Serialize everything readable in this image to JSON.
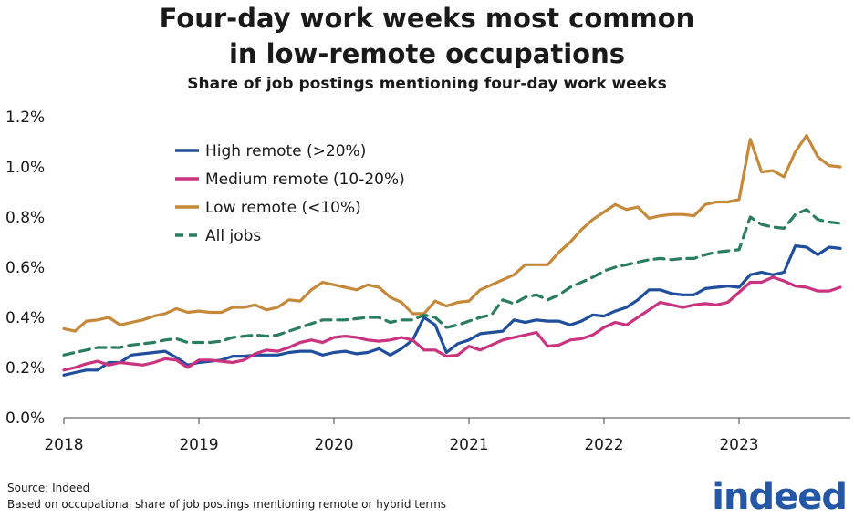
{
  "title_line1": "Four-day work weeks most common",
  "title_line2": "in low-remote occupations",
  "subtitle": "Share of job postings mentioning four-day work weeks",
  "source": "Source: Indeed",
  "note": "Based on occupational share of job postings mentioning remote or hybrid terms",
  "logo": "indeed",
  "chart_data": {
    "type": "line",
    "title": "Four-day work weeks most common in low-remote occupations",
    "subtitle": "Share of job postings mentioning four-day work weeks",
    "x_start": "2018-01",
    "x_ticks": [
      "2018",
      "2019",
      "2020",
      "2021",
      "2022",
      "2023"
    ],
    "y_ticks": [
      "0.0%",
      "0.2%",
      "0.4%",
      "0.6%",
      "0.8%",
      "1.0%",
      "1.2%"
    ],
    "ylim": [
      0,
      1.2
    ],
    "y_unit": "%",
    "grid": false,
    "legend_position": "top-left",
    "series": [
      {
        "name": "High remote (>20%)",
        "color": "#1f4e9c",
        "dash": "solid",
        "values": [
          0.17,
          0.18,
          0.19,
          0.19,
          0.22,
          0.22,
          0.25,
          0.255,
          0.26,
          0.265,
          0.24,
          0.21,
          0.22,
          0.225,
          0.23,
          0.245,
          0.245,
          0.25,
          0.25,
          0.25,
          0.26,
          0.265,
          0.265,
          0.25,
          0.26,
          0.265,
          0.255,
          0.26,
          0.275,
          0.25,
          0.275,
          0.31,
          0.4,
          0.37,
          0.26,
          0.295,
          0.31,
          0.335,
          0.34,
          0.345,
          0.39,
          0.38,
          0.39,
          0.385,
          0.385,
          0.37,
          0.385,
          0.41,
          0.405,
          0.425,
          0.44,
          0.47,
          0.51,
          0.51,
          0.495,
          0.49,
          0.49,
          0.515,
          0.52,
          0.525,
          0.52,
          0.57,
          0.58,
          0.57,
          0.58,
          0.685,
          0.68,
          0.65,
          0.68,
          0.675
        ]
      },
      {
        "name": "Medium remote (10-20%)",
        "color": "#c9337f",
        "dash": "solid",
        "values": [
          0.19,
          0.2,
          0.215,
          0.225,
          0.21,
          0.22,
          0.215,
          0.21,
          0.22,
          0.235,
          0.23,
          0.2,
          0.23,
          0.23,
          0.225,
          0.22,
          0.23,
          0.255,
          0.27,
          0.265,
          0.28,
          0.3,
          0.31,
          0.3,
          0.32,
          0.325,
          0.32,
          0.31,
          0.305,
          0.31,
          0.32,
          0.31,
          0.27,
          0.27,
          0.245,
          0.25,
          0.285,
          0.27,
          0.29,
          0.31,
          0.32,
          0.33,
          0.34,
          0.285,
          0.29,
          0.31,
          0.315,
          0.33,
          0.36,
          0.38,
          0.37,
          0.4,
          0.43,
          0.46,
          0.45,
          0.44,
          0.45,
          0.455,
          0.45,
          0.46,
          0.5,
          0.54,
          0.54,
          0.56,
          0.545,
          0.525,
          0.52,
          0.505,
          0.505,
          0.52
        ]
      },
      {
        "name": "Low remote (<10%)",
        "color": "#c6893a",
        "dash": "solid",
        "values": [
          0.355,
          0.345,
          0.385,
          0.39,
          0.4,
          0.37,
          0.38,
          0.39,
          0.405,
          0.415,
          0.435,
          0.42,
          0.425,
          0.42,
          0.42,
          0.44,
          0.44,
          0.45,
          0.43,
          0.44,
          0.47,
          0.465,
          0.51,
          0.54,
          0.53,
          0.52,
          0.51,
          0.53,
          0.52,
          0.48,
          0.46,
          0.415,
          0.415,
          0.465,
          0.445,
          0.46,
          0.465,
          0.51,
          0.53,
          0.55,
          0.57,
          0.61,
          0.61,
          0.61,
          0.66,
          0.7,
          0.75,
          0.79,
          0.82,
          0.85,
          0.83,
          0.84,
          0.795,
          0.805,
          0.81,
          0.81,
          0.805,
          0.85,
          0.86,
          0.86,
          0.87,
          1.11,
          0.98,
          0.985,
          0.96,
          1.06,
          1.125,
          1.04,
          1.005,
          1.0
        ]
      },
      {
        "name": "All jobs",
        "color": "#2a7d5e",
        "dash": "dashed",
        "values": [
          0.25,
          0.26,
          0.27,
          0.28,
          0.28,
          0.28,
          0.29,
          0.295,
          0.3,
          0.31,
          0.315,
          0.3,
          0.3,
          0.3,
          0.305,
          0.32,
          0.325,
          0.33,
          0.325,
          0.33,
          0.345,
          0.36,
          0.375,
          0.39,
          0.39,
          0.39,
          0.395,
          0.4,
          0.4,
          0.38,
          0.39,
          0.39,
          0.41,
          0.4,
          0.36,
          0.37,
          0.385,
          0.4,
          0.41,
          0.47,
          0.455,
          0.48,
          0.49,
          0.47,
          0.49,
          0.52,
          0.54,
          0.56,
          0.585,
          0.6,
          0.61,
          0.62,
          0.63,
          0.635,
          0.63,
          0.635,
          0.635,
          0.65,
          0.66,
          0.665,
          0.67,
          0.8,
          0.77,
          0.76,
          0.755,
          0.81,
          0.83,
          0.79,
          0.78,
          0.775
        ]
      }
    ]
  }
}
